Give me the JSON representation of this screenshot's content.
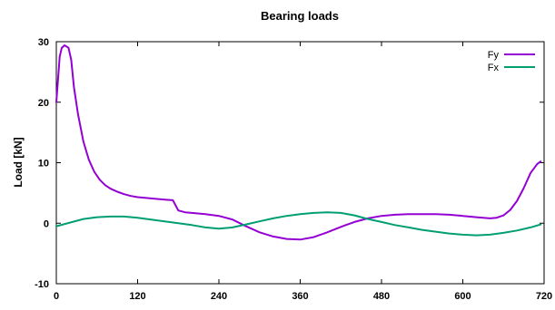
{
  "chart_data": {
    "type": "line",
    "title": "Bearing loads",
    "xlabel": "",
    "ylabel": "Load [kN]",
    "xlim": [
      0,
      720
    ],
    "ylim": [
      -10,
      30
    ],
    "x_ticks": [
      0,
      120,
      240,
      360,
      480,
      600,
      720
    ],
    "y_ticks": [
      -10,
      0,
      10,
      20,
      30
    ],
    "grid": false,
    "legend": "top-right",
    "series": [
      {
        "name": "Fy",
        "color": "#9400d3",
        "points": [
          [
            0,
            20
          ],
          [
            2,
            23
          ],
          [
            5,
            27.5
          ],
          [
            8,
            29
          ],
          [
            12,
            29.4
          ],
          [
            18,
            29
          ],
          [
            22,
            27
          ],
          [
            26,
            22.5
          ],
          [
            32,
            18
          ],
          [
            40,
            13.5
          ],
          [
            48,
            10.5
          ],
          [
            56,
            8.5
          ],
          [
            64,
            7.2
          ],
          [
            72,
            6.3
          ],
          [
            80,
            5.7
          ],
          [
            90,
            5.2
          ],
          [
            100,
            4.8
          ],
          [
            110,
            4.5
          ],
          [
            120,
            4.3
          ],
          [
            140,
            4.1
          ],
          [
            160,
            3.9
          ],
          [
            172,
            3.8
          ],
          [
            180,
            2.1
          ],
          [
            190,
            1.8
          ],
          [
            200,
            1.7
          ],
          [
            220,
            1.5
          ],
          [
            240,
            1.2
          ],
          [
            260,
            0.6
          ],
          [
            280,
            -0.5
          ],
          [
            300,
            -1.5
          ],
          [
            320,
            -2.2
          ],
          [
            340,
            -2.6
          ],
          [
            360,
            -2.7
          ],
          [
            380,
            -2.3
          ],
          [
            400,
            -1.5
          ],
          [
            420,
            -0.6
          ],
          [
            440,
            0.2
          ],
          [
            460,
            0.8
          ],
          [
            480,
            1.2
          ],
          [
            500,
            1.4
          ],
          [
            520,
            1.5
          ],
          [
            540,
            1.5
          ],
          [
            560,
            1.5
          ],
          [
            580,
            1.4
          ],
          [
            600,
            1.2
          ],
          [
            620,
            1.0
          ],
          [
            640,
            0.8
          ],
          [
            650,
            0.9
          ],
          [
            660,
            1.3
          ],
          [
            670,
            2.2
          ],
          [
            680,
            3.7
          ],
          [
            690,
            5.8
          ],
          [
            700,
            8.3
          ],
          [
            710,
            9.8
          ],
          [
            715,
            10.2
          ]
        ]
      },
      {
        "name": "Fx",
        "color": "#009e73",
        "points": [
          [
            0,
            -0.5
          ],
          [
            20,
            0.1
          ],
          [
            40,
            0.7
          ],
          [
            60,
            1.0
          ],
          [
            80,
            1.1
          ],
          [
            100,
            1.1
          ],
          [
            120,
            0.9
          ],
          [
            140,
            0.6
          ],
          [
            160,
            0.3
          ],
          [
            180,
            0
          ],
          [
            200,
            -0.3
          ],
          [
            220,
            -0.7
          ],
          [
            240,
            -0.9
          ],
          [
            260,
            -0.7
          ],
          [
            280,
            -0.2
          ],
          [
            300,
            0.3
          ],
          [
            320,
            0.8
          ],
          [
            340,
            1.2
          ],
          [
            360,
            1.5
          ],
          [
            380,
            1.7
          ],
          [
            400,
            1.8
          ],
          [
            420,
            1.7
          ],
          [
            440,
            1.3
          ],
          [
            460,
            0.7
          ],
          [
            480,
            0.2
          ],
          [
            500,
            -0.3
          ],
          [
            520,
            -0.7
          ],
          [
            540,
            -1.1
          ],
          [
            560,
            -1.4
          ],
          [
            580,
            -1.7
          ],
          [
            600,
            -1.9
          ],
          [
            620,
            -2.0
          ],
          [
            640,
            -1.9
          ],
          [
            660,
            -1.6
          ],
          [
            680,
            -1.2
          ],
          [
            700,
            -0.7
          ],
          [
            715,
            -0.2
          ]
        ]
      }
    ]
  }
}
